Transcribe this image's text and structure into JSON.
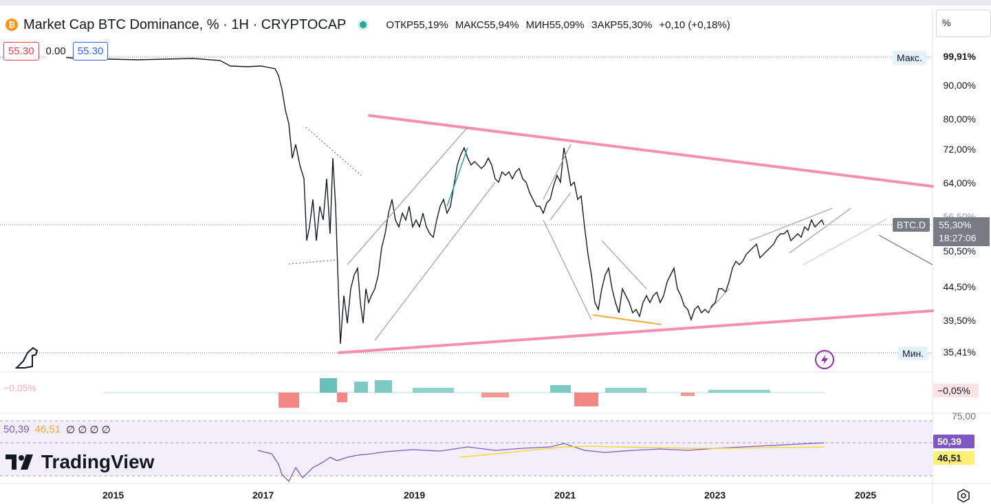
{
  "header": {
    "symbol_icon": "bitcoin-icon",
    "title": "Market Cap BTC Dominance, % · 1H · CRYPTOCAP",
    "open_label": "ОТКР",
    "open_value": "55,19%",
    "high_label": "МАКС",
    "high_value": "55,94%",
    "low_label": "МИН",
    "low_value": "55,09%",
    "close_label": "ЗАКР",
    "close_value": "55,30%",
    "change": "+0,10 (+0,18%)"
  },
  "price_boxes": {
    "sell": "55.30",
    "spread": "0.00",
    "buy": "55.30"
  },
  "unit_selector": "%",
  "price_axis": {
    "max_label": "Макс.",
    "max_value": "99,91%",
    "ticks": [
      "90,00%",
      "80,00%",
      "72,00%",
      "64,00%",
      "56,50%",
      "50,50%",
      "44,50%",
      "39,50%"
    ],
    "symbol_tag": "BTC.D",
    "last_price": "55,30%",
    "countdown": "18:27:06",
    "min_label": "Мин.",
    "min_value": "35,41%"
  },
  "oscillator": {
    "value_left": "−0,05%",
    "value_right": "−0,05%"
  },
  "rsi": {
    "legend_rsi": "50,39",
    "legend_ma": "46,51",
    "legend_rest": "∅ ∅ ∅ ∅",
    "axis_top": "75,00",
    "tag_rsi": "50,39",
    "tag_ma": "46,51"
  },
  "time_axis": [
    "2015",
    "2017",
    "2019",
    "2021",
    "2023",
    "2025"
  ],
  "branding": {
    "logo_text": "TradingView"
  },
  "colors": {
    "trendline": "#f48fb1",
    "up": "#26a69a",
    "down": "#ef5350",
    "rsi": "#7e57c2",
    "rsi_ma": "#fdd835",
    "accent_blue": "#2962ff"
  }
}
